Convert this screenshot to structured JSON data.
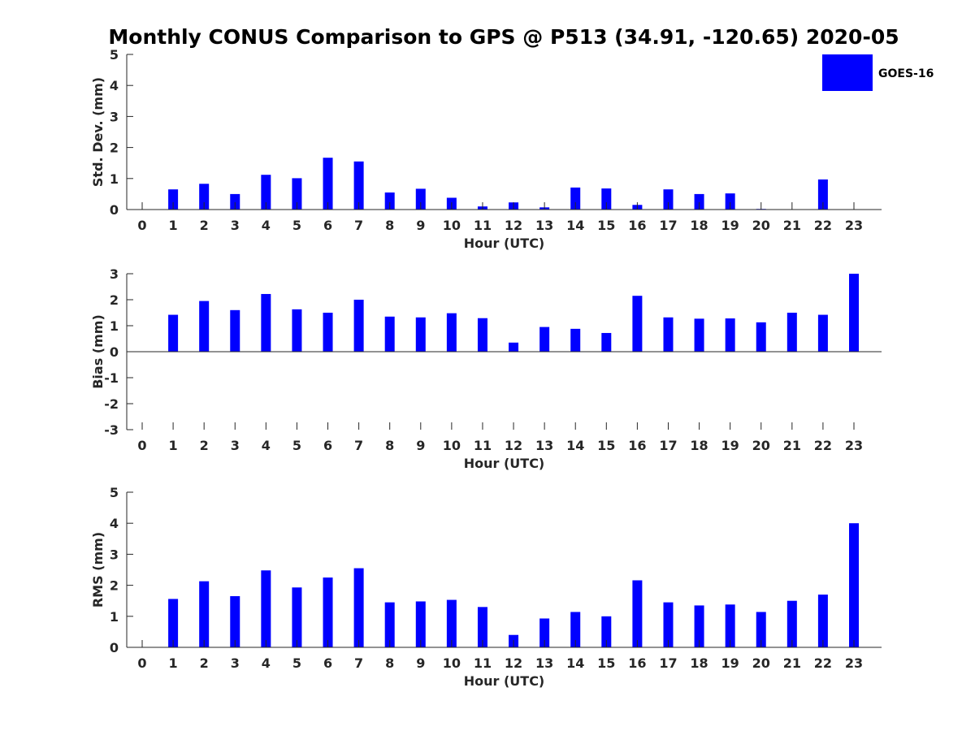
{
  "title": "Monthly CONUS Comparison to GPS @ P513 (34.91, -120.65) 2020-05",
  "legend": {
    "label": "GOES-16",
    "color": "#0000ff",
    "position": "top-right"
  },
  "chart_data": [
    {
      "type": "bar",
      "categories": [
        "0",
        "1",
        "2",
        "3",
        "4",
        "5",
        "6",
        "7",
        "8",
        "9",
        "10",
        "11",
        "12",
        "13",
        "14",
        "15",
        "16",
        "17",
        "18",
        "19",
        "20",
        "21",
        "22",
        "23"
      ],
      "series": [
        {
          "name": "GOES-16",
          "values": [
            null,
            0.65,
            0.83,
            0.5,
            1.12,
            1.01,
            1.67,
            1.55,
            0.55,
            0.67,
            0.38,
            0.1,
            0.23,
            0.07,
            0.71,
            0.68,
            0.15,
            0.65,
            0.5,
            0.52,
            0.02,
            null,
            0.97,
            null
          ]
        }
      ],
      "xlabel": "Hour (UTC)",
      "ylabel": "Std. Dev. (mm)",
      "ylim": [
        0,
        5
      ],
      "yticks": [
        "0",
        "1",
        "2",
        "3",
        "4",
        "5"
      ],
      "grid": false
    },
    {
      "type": "bar",
      "categories": [
        "0",
        "1",
        "2",
        "3",
        "4",
        "5",
        "6",
        "7",
        "8",
        "9",
        "10",
        "11",
        "12",
        "13",
        "14",
        "15",
        "16",
        "17",
        "18",
        "19",
        "20",
        "21",
        "22",
        "23"
      ],
      "series": [
        {
          "name": "GOES-16",
          "values": [
            null,
            1.42,
            1.95,
            1.6,
            2.22,
            1.63,
            1.5,
            2.0,
            1.35,
            1.32,
            1.48,
            1.29,
            0.35,
            0.95,
            0.88,
            0.72,
            2.15,
            1.32,
            1.27,
            1.28,
            1.13,
            1.5,
            1.42,
            3.0
          ]
        }
      ],
      "xlabel": "Hour (UTC)",
      "ylabel": "Bias (mm)",
      "ylim": [
        -3,
        3
      ],
      "yticks": [
        "-3",
        "-2",
        "-1",
        "0",
        "1",
        "2",
        "3"
      ],
      "grid": false
    },
    {
      "type": "bar",
      "categories": [
        "0",
        "1",
        "2",
        "3",
        "4",
        "5",
        "6",
        "7",
        "8",
        "9",
        "10",
        "11",
        "12",
        "13",
        "14",
        "15",
        "16",
        "17",
        "18",
        "19",
        "20",
        "21",
        "22",
        "23"
      ],
      "series": [
        {
          "name": "GOES-16",
          "values": [
            null,
            1.56,
            2.13,
            1.65,
            2.48,
            1.93,
            2.25,
            2.55,
            1.45,
            1.48,
            1.53,
            1.3,
            0.4,
            0.93,
            1.14,
            1.0,
            2.16,
            1.45,
            1.35,
            1.38,
            1.14,
            1.5,
            1.7,
            4.0
          ]
        }
      ],
      "xlabel": "Hour (UTC)",
      "ylabel": "RMS (mm)",
      "ylim": [
        0,
        5
      ],
      "yticks": [
        "0",
        "1",
        "2",
        "3",
        "4",
        "5"
      ],
      "grid": false
    }
  ]
}
